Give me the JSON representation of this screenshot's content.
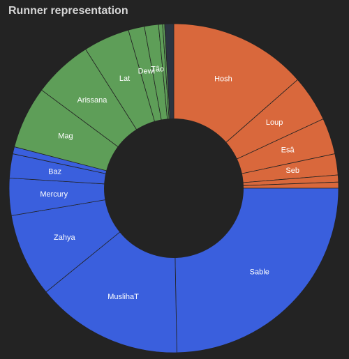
{
  "chart_data": {
    "type": "pie",
    "title": "Runner representation",
    "colors": {
      "orange": "#d9683c",
      "blue": "#3a5fdd",
      "green": "#5e9e58",
      "dark": "#2c3440",
      "hole": "#232323",
      "divider": "#232323"
    },
    "slices": [
      {
        "label": "Hosh",
        "value": 13.7,
        "group": "orange"
      },
      {
        "label": "Loup",
        "value": 4.6,
        "group": "orange"
      },
      {
        "label": "Esâ",
        "value": 3.6,
        "group": "orange"
      },
      {
        "label": "Seb",
        "value": 2.1,
        "group": "orange"
      },
      {
        "label": "",
        "value": 0.7,
        "group": "orange"
      },
      {
        "label": "",
        "value": 0.6,
        "group": "orange"
      },
      {
        "label": "Sable",
        "value": 25.0,
        "group": "blue"
      },
      {
        "label": "MuslihaT",
        "value": 14.6,
        "group": "blue"
      },
      {
        "label": "Zahya",
        "value": 8.3,
        "group": "blue"
      },
      {
        "label": "Mercury",
        "value": 3.7,
        "group": "blue"
      },
      {
        "label": "Baz",
        "value": 2.4,
        "group": "blue"
      },
      {
        "label": "",
        "value": 0.7,
        "group": "blue"
      },
      {
        "label": "Mag",
        "value": 6.2,
        "group": "green"
      },
      {
        "label": "Arissana",
        "value": 5.9,
        "group": "green"
      },
      {
        "label": "Lat",
        "value": 4.6,
        "group": "green"
      },
      {
        "label": "Dewi",
        "value": 1.6,
        "group": "green"
      },
      {
        "label": "Tâo",
        "value": 1.4,
        "group": "green"
      },
      {
        "label": "",
        "value": 0.4,
        "group": "green"
      },
      {
        "label": "",
        "value": 0.2,
        "group": "green"
      },
      {
        "label": "",
        "value": 0.9,
        "group": "dark"
      }
    ]
  }
}
